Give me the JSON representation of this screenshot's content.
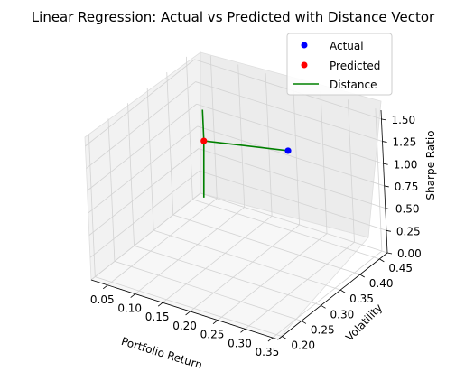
{
  "chart_data": {
    "type": "scatter",
    "projection": "3d",
    "title": "Linear Regression: Actual vs Predicted with Distance Vector",
    "xlabel": "Portfolio Return",
    "ylabel": "Volatility",
    "zlabel": "Sharpe Ratio",
    "xlim": [
      0.02,
      0.36
    ],
    "ylim": [
      0.19,
      0.47
    ],
    "zlim": [
      0.0,
      1.6
    ],
    "xticks": [
      "0.05",
      "0.10",
      "0.15",
      "0.20",
      "0.25",
      "0.30",
      "0.35"
    ],
    "yticks": [
      "0.20",
      "0.25",
      "0.30",
      "0.35",
      "0.40",
      "0.45"
    ],
    "zticks": [
      "0.00",
      "0.25",
      "0.50",
      "0.75",
      "1.00",
      "1.25",
      "1.50"
    ],
    "grid": true,
    "legend_position": "top-right",
    "series": [
      {
        "name": "Actual",
        "kind": "point",
        "color": "#0000ff",
        "points": [
          [
            0.2,
            0.45,
            0.9
          ]
        ]
      },
      {
        "name": "Predicted",
        "kind": "point",
        "color": "#ff0000",
        "points": [
          [
            0.12,
            0.35,
            1.2
          ]
        ]
      },
      {
        "name": "Distance",
        "kind": "line",
        "color": "#008000",
        "segments": [
          [
            [
              0.12,
              0.35,
              1.2
            ],
            [
              0.2,
              0.45,
              0.9
            ]
          ],
          [
            [
              0.12,
              0.35,
              1.2
            ],
            [
              0.12,
              0.35,
              1.55
            ]
          ],
          [
            [
              0.12,
              0.35,
              1.2
            ],
            [
              0.175,
              0.27,
              0.95
            ]
          ]
        ]
      }
    ]
  }
}
